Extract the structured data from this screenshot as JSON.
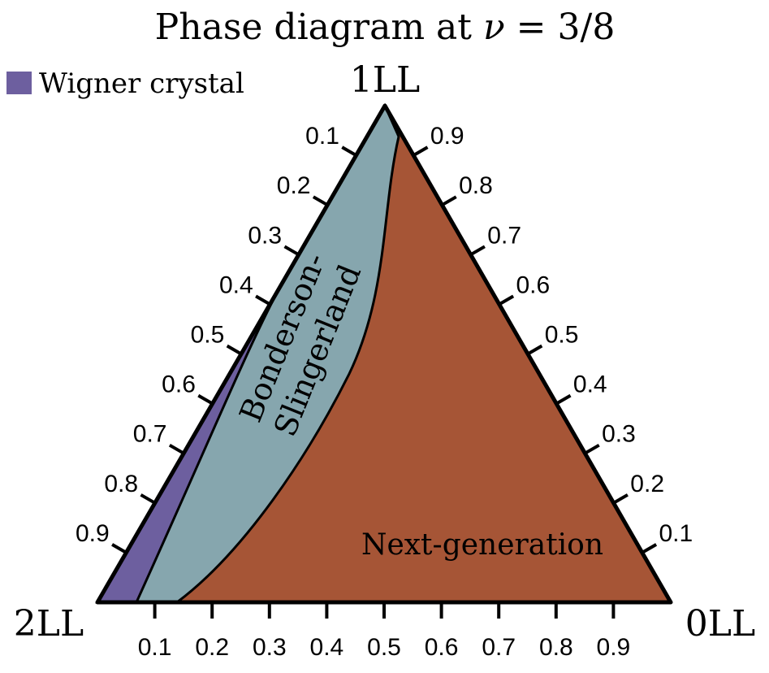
{
  "title": {
    "prefix": "Phase diagram at ",
    "nu": "ν",
    "equals": " = ",
    "fraction": "3/8"
  },
  "legend": {
    "label": "Wigner crystal",
    "color": "#6d5f9f"
  },
  "vertices": {
    "top": "1LL",
    "left": "2LL",
    "right": "0LL"
  },
  "ticks": {
    "left_edge": [
      "0.1",
      "0.2",
      "0.3",
      "0.4",
      "0.5",
      "0.6",
      "0.7",
      "0.8",
      "0.9"
    ],
    "right_edge": [
      "0.9",
      "0.8",
      "0.7",
      "0.6",
      "0.5",
      "0.4",
      "0.3",
      "0.2",
      "0.1"
    ],
    "bottom_edge": [
      "0.1",
      "0.2",
      "0.3",
      "0.4",
      "0.5",
      "0.6",
      "0.7",
      "0.8",
      "0.9"
    ]
  },
  "regions": {
    "wigner": {
      "color": "#6d5f9f"
    },
    "bonderson": {
      "line1": "Bonderson-",
      "line2": "Slingerland",
      "color": "#86a6ae"
    },
    "next_generation": {
      "label": "Next-generation",
      "color": "#a65536"
    }
  }
}
